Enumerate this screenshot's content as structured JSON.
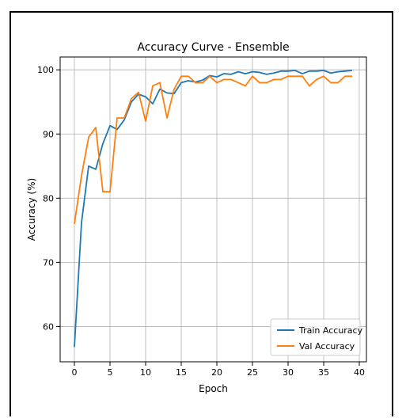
{
  "chart_data": {
    "type": "line",
    "title": "Accuracy Curve - Ensemble",
    "xlabel": "Epoch",
    "ylabel": "Accuracy (%)",
    "xlim": [
      -2,
      41
    ],
    "ylim": [
      54.5,
      102
    ],
    "xticks": [
      0,
      5,
      10,
      15,
      20,
      25,
      30,
      35,
      40
    ],
    "yticks": [
      60,
      70,
      80,
      90,
      100
    ],
    "grid": true,
    "legend_position": "lower right",
    "x": [
      0,
      1,
      2,
      3,
      4,
      5,
      6,
      7,
      8,
      9,
      10,
      11,
      12,
      13,
      14,
      15,
      16,
      17,
      18,
      19,
      20,
      21,
      22,
      23,
      24,
      25,
      26,
      27,
      28,
      29,
      30,
      31,
      32,
      33,
      34,
      35,
      36,
      37,
      38,
      39
    ],
    "series": [
      {
        "name": "Train Accuracy",
        "color": "#1f77b4",
        "values": [
          56.8,
          76.2,
          85.0,
          84.5,
          88.5,
          91.3,
          90.7,
          92.2,
          95.0,
          96.2,
          95.8,
          94.7,
          97.0,
          96.4,
          96.3,
          98.0,
          98.3,
          98.1,
          98.4,
          99.1,
          98.9,
          99.4,
          99.3,
          99.7,
          99.4,
          99.7,
          99.6,
          99.3,
          99.5,
          99.8,
          99.8,
          99.9,
          99.4,
          99.8,
          99.8,
          99.9,
          99.5,
          99.7,
          99.8,
          99.9
        ]
      },
      {
        "name": "Val Accuracy",
        "color": "#ff7f0e",
        "values": [
          76.0,
          83.5,
          89.5,
          91.0,
          81.0,
          81.0,
          92.5,
          92.5,
          95.5,
          96.5,
          92.0,
          97.5,
          98.0,
          92.5,
          97.0,
          99.0,
          99.0,
          98.0,
          98.0,
          99.0,
          98.0,
          98.5,
          98.5,
          98.0,
          97.5,
          99.0,
          98.0,
          98.0,
          98.5,
          98.5,
          99.0,
          99.0,
          99.0,
          97.5,
          98.5,
          99.0,
          98.0,
          98.0,
          99.0,
          99.0
        ]
      }
    ]
  }
}
